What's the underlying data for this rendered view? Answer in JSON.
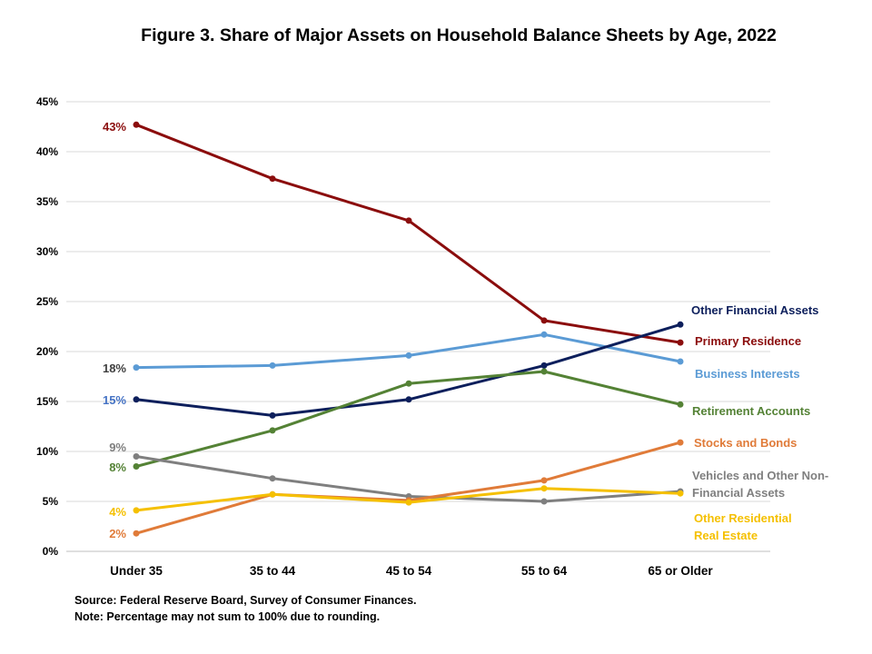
{
  "chart_data": {
    "type": "line",
    "title": "Figure 3. Share of Major Assets on Household Balance Sheets by Age, 2022",
    "categories": [
      "Under 35",
      "35 to 44",
      "45 to 54",
      "55 to 64",
      "65 or Older"
    ],
    "ylim": [
      0,
      45
    ],
    "yticks": [
      "0%",
      "5%",
      "10%",
      "15%",
      "20%",
      "25%",
      "30%",
      "35%",
      "40%",
      "45%"
    ],
    "grid": true,
    "legend": "right, labels at line ends",
    "series": [
      {
        "name": "Primary Residence",
        "color": "#8B0D0D",
        "values": [
          42.7,
          37.3,
          33.1,
          23.1,
          20.9
        ],
        "start_label": "43%"
      },
      {
        "name": "Business Interests",
        "color": "#5B9BD5",
        "values": [
          18.4,
          18.6,
          19.6,
          21.7,
          19.0
        ],
        "start_label": "18%",
        "start_label_color": "#404040"
      },
      {
        "name": "Other Financial Assets",
        "color": "#0D1F5C",
        "values": [
          15.2,
          13.6,
          15.2,
          18.6,
          22.7
        ],
        "start_label": "15%",
        "start_label_color": "#4472C4"
      },
      {
        "name": "Retirement Accounts",
        "color": "#548235",
        "values": [
          8.5,
          12.1,
          16.8,
          18.0,
          14.7
        ],
        "start_label": "8%"
      },
      {
        "name": "Vehicles and Other Non-\nFinancial Assets",
        "color": "#7F7F7F",
        "values": [
          9.5,
          7.3,
          5.5,
          5.0,
          6.0
        ],
        "start_label": "9%"
      },
      {
        "name": "Stocks and Bonds",
        "color": "#E07B39",
        "values": [
          1.8,
          5.7,
          5.1,
          7.1,
          10.9
        ],
        "start_label": "2%"
      },
      {
        "name": "Other Residential\nReal Estate",
        "color": "#F5C000",
        "values": [
          4.1,
          5.7,
          4.9,
          6.3,
          5.8
        ],
        "start_label": "4%"
      }
    ]
  },
  "notes": {
    "source": "Source: Federal Reserve Board, Survey of Consumer Finances.",
    "note": "Note: Percentage may not sum to 100% due to rounding."
  }
}
